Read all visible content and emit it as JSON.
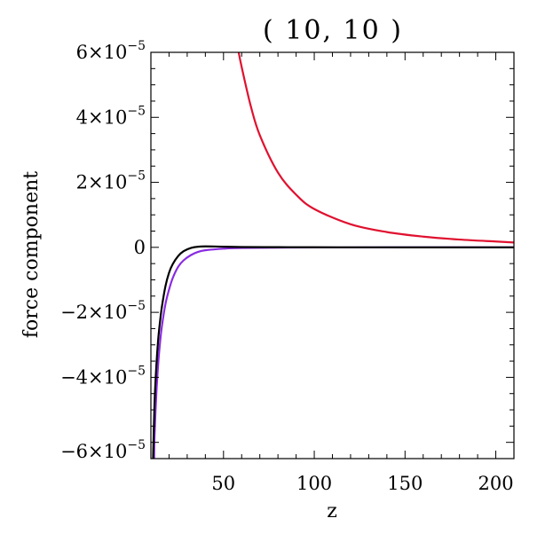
{
  "chart_data": {
    "type": "line",
    "title": "(  10,  10  )",
    "xlabel": "z",
    "ylabel": "force component",
    "xlim": [
      10,
      210
    ],
    "ylim": [
      -6.5e-05,
      6e-05
    ],
    "x_ticks": [
      50,
      100,
      150,
      200
    ],
    "x_tick_labels": [
      "50",
      "100",
      "150",
      "200"
    ],
    "y_ticks": [
      -6e-05,
      -4e-05,
      -2e-05,
      0,
      2e-05,
      4e-05,
      6e-05
    ],
    "y_tick_labels": [
      {
        "mant": "−6×10",
        "exp": "−5"
      },
      {
        "mant": "−4×10",
        "exp": "−5"
      },
      {
        "mant": "−2×10",
        "exp": "−5"
      },
      {
        "mant": "0",
        "exp": ""
      },
      {
        "mant": "2×10",
        "exp": "−5"
      },
      {
        "mant": "4×10",
        "exp": "−5"
      },
      {
        "mant": "6×10",
        "exp": "−5"
      }
    ],
    "grid": false,
    "legend": "none",
    "series": [
      {
        "color": "#e0112f",
        "x": [
          58,
          60,
          65,
          70,
          80,
          90,
          100,
          120,
          140,
          160,
          180,
          200,
          210
        ],
        "y": [
          6.1e-05,
          5.55e-05,
          4.35e-05,
          3.45e-05,
          2.3e-05,
          1.62e-05,
          1.18e-05,
          7.1e-06,
          4.7e-06,
          3.3e-06,
          2.4e-06,
          1.8e-06,
          1.5e-06
        ]
      },
      {
        "color": "#8a2be2",
        "x": [
          11.8,
          12,
          13,
          14,
          15,
          16,
          18,
          20,
          22,
          25,
          28,
          32,
          36,
          40,
          50,
          60,
          80,
          100,
          150,
          210
        ],
        "y": [
          -6.5e-05,
          -5.8e-05,
          -4.5e-05,
          -3.6e-05,
          -2.95e-05,
          -2.45e-05,
          -1.75e-05,
          -1.3e-05,
          -9.5e-06,
          -6e-06,
          -4e-06,
          -2.4e-06,
          -1.4e-06,
          -9e-07,
          -4e-07,
          -2e-07,
          -7e-08,
          -3e-08,
          0,
          0
        ]
      },
      {
        "color": "#000000",
        "x": [
          11.2,
          12,
          13,
          14,
          15,
          16,
          18,
          20,
          22,
          25,
          28,
          32,
          36,
          40,
          50,
          60,
          80,
          100,
          150,
          210
        ],
        "y": [
          -6.5e-05,
          -4.8e-05,
          -3.65e-05,
          -2.85e-05,
          -2.3e-05,
          -1.85e-05,
          -1.2e-05,
          -7.8e-06,
          -5.2e-06,
          -2.7e-06,
          -1.2e-06,
          -2e-07,
          2e-07,
          3e-07,
          2e-07,
          1e-07,
          5e-08,
          2e-08,
          0,
          0
        ]
      }
    ]
  }
}
